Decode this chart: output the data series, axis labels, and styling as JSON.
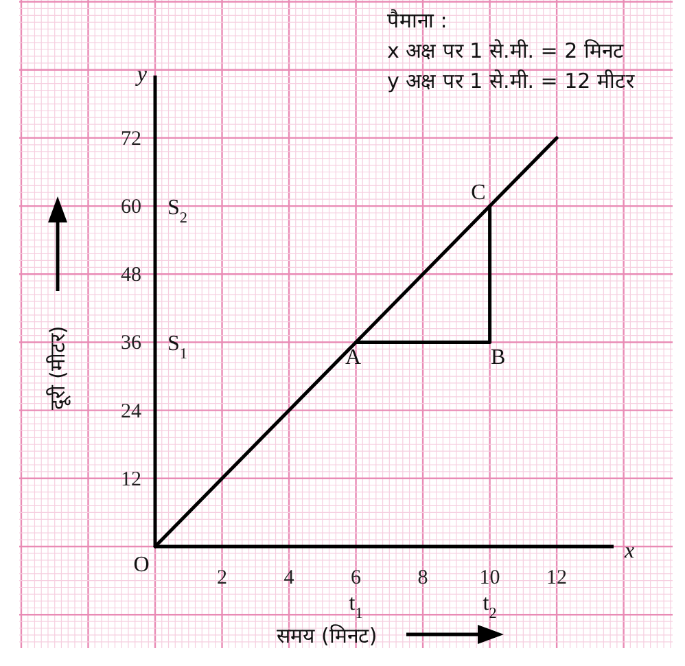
{
  "chart_data": {
    "type": "line",
    "xlabel": "समय (मिनट)",
    "ylabel": "दूरी (मीटर)",
    "xlim": [
      0,
      13.7
    ],
    "ylim": [
      0,
      83
    ],
    "xticks": [
      2,
      4,
      6,
      8,
      10,
      12
    ],
    "yticks": [
      12,
      24,
      36,
      48,
      60,
      72
    ],
    "grid": true,
    "series": [
      {
        "color": "#000000",
        "x": [
          0,
          12
        ],
        "values": [
          0,
          72
        ]
      },
      {
        "color": "#000000",
        "x": [
          6,
          10,
          10
        ],
        "values": [
          36,
          36,
          60
        ]
      }
    ],
    "annotations": [
      {
        "text": "O",
        "x": 0,
        "y": 0
      },
      {
        "text": "A",
        "x": 6,
        "y": 36
      },
      {
        "text": "B",
        "x": 10,
        "y": 36
      },
      {
        "text": "C",
        "x": 10,
        "y": 60
      },
      "S$_{1}$",
      "S$_{2}$",
      "t$_{1}$",
      "t$_{2}$",
      "x",
      "y",
      "पैमाना :",
      "x अक्ष पर 1 से.मी. = 2 मिनट",
      "y अक्ष पर 1 से.मी. = 12 मीटर"
    ]
  }
}
